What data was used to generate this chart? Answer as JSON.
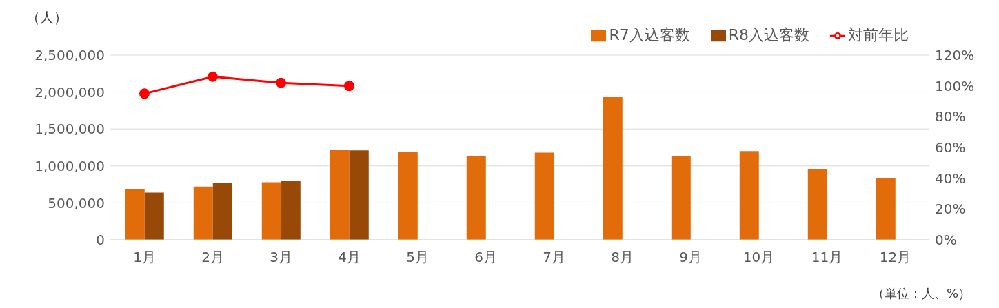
{
  "chart_data": {
    "type": "bar",
    "ylabel": "（人）",
    "categories": [
      "1月",
      "2月",
      "3月",
      "4月",
      "5月",
      "6月",
      "7月",
      "8月",
      "9月",
      "10月",
      "11月",
      "12月"
    ],
    "series": [
      {
        "name": "R7入込客数",
        "color": "#e36c0a",
        "values": [
          680000,
          720000,
          780000,
          1220000,
          1190000,
          1130000,
          1180000,
          1930000,
          1130000,
          1200000,
          960000,
          830000
        ]
      },
      {
        "name": "R8入込客数",
        "color": "#984807",
        "values": [
          640000,
          770000,
          800000,
          1210000,
          null,
          null,
          null,
          null,
          null,
          null,
          null,
          null
        ]
      },
      {
        "name": "対前年比",
        "type": "line",
        "axis": "y2",
        "color": "#ff0000",
        "marker": "circle",
        "values": [
          95,
          106,
          102,
          100,
          null,
          null,
          null,
          null,
          null,
          null,
          null,
          null
        ]
      }
    ],
    "ylim": [
      0,
      2500000
    ],
    "yticks": [
      0,
      {
        "value": 500000,
        "label": "500,000"
      },
      {
        "value": 1000000,
        "label": "1,000,000"
      },
      {
        "value": 1500000,
        "label": "1,500,000"
      },
      {
        "value": 2000000,
        "label": "2,000,000"
      },
      {
        "value": 2500000,
        "label": "2,500,000"
      }
    ],
    "y2lim": [
      0,
      120
    ],
    "y2ticks": [
      {
        "value": 0,
        "label": "0%"
      },
      {
        "value": 20,
        "label": "20%"
      },
      {
        "value": 40,
        "label": "40%"
      },
      {
        "value": 60,
        "label": "60%"
      },
      {
        "value": 80,
        "label": "80%"
      },
      {
        "value": 100,
        "label": "100%"
      },
      {
        "value": 120,
        "label": "120%"
      }
    ],
    "grid": "y",
    "legend": "top right",
    "annotations": [
      "（単位：人、%）"
    ]
  }
}
